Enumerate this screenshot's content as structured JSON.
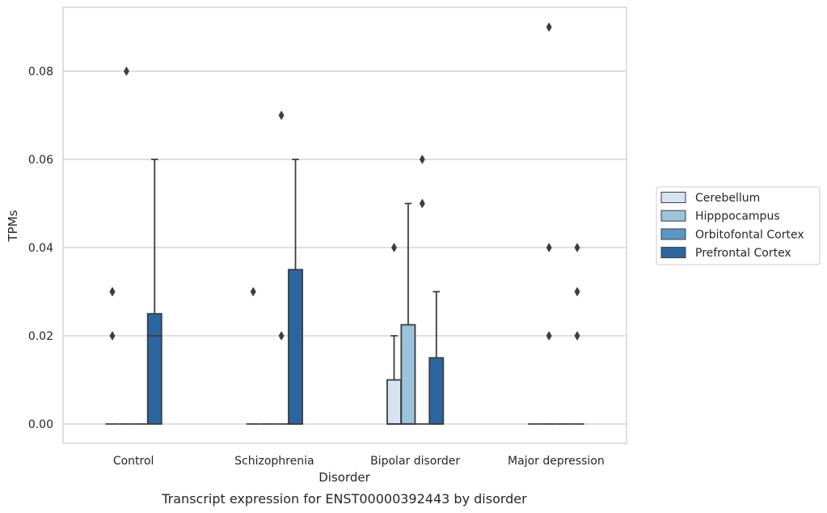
{
  "chart_data": {
    "type": "box",
    "caption": "Transcript expression for ENST00000392443 by disorder",
    "xlabel": "Disorder",
    "ylabel": "TPMs",
    "ylim": [
      -0.0045,
      0.0945
    ],
    "yticks": [
      "0.00",
      "0.02",
      "0.04",
      "0.06",
      "0.08"
    ],
    "ytick_values": [
      0,
      0.02,
      0.04,
      0.06,
      0.08
    ],
    "grid": "horizontal",
    "legend_position": "right",
    "categories": [
      "Control",
      "Schizophrenia",
      "Bipolar disorder",
      "Major depression"
    ],
    "series": [
      {
        "name": "Cerebellum",
        "color": "#d6e4f1",
        "boxes": [
          {
            "q1": 0,
            "median": 0,
            "q3": 0,
            "whisker_low": 0,
            "whisker_high": 0,
            "outliers": [
              0.02,
              0.03,
              0.03
            ]
          },
          {
            "q1": 0,
            "median": 0,
            "q3": 0,
            "whisker_low": 0,
            "whisker_high": 0,
            "outliers": [
              0.03
            ]
          },
          {
            "q1": 0,
            "median": 0,
            "q3": 0.01,
            "whisker_low": 0,
            "whisker_high": 0.02,
            "outliers": [
              0.04
            ]
          },
          {
            "q1": 0,
            "median": 0,
            "q3": 0,
            "whisker_low": 0,
            "whisker_high": 0,
            "outliers": []
          }
        ]
      },
      {
        "name": "Hipppocampus",
        "color": "#9bc4dc",
        "boxes": [
          {
            "q1": 0,
            "median": 0,
            "q3": 0,
            "whisker_low": 0,
            "whisker_high": 0,
            "outliers": [
              0.08
            ]
          },
          {
            "q1": 0,
            "median": 0,
            "q3": 0,
            "whisker_low": 0,
            "whisker_high": 0,
            "outliers": []
          },
          {
            "q1": 0,
            "median": 0,
            "q3": 0.0225,
            "whisker_low": 0,
            "whisker_high": 0.05,
            "outliers": []
          },
          {
            "q1": 0,
            "median": 0,
            "q3": 0,
            "whisker_low": 0,
            "whisker_high": 0,
            "outliers": [
              0.02,
              0.04,
              0.09
            ]
          }
        ]
      },
      {
        "name": "Orbitofontal Cortex",
        "color": "#5a97c5",
        "boxes": [
          {
            "q1": 0,
            "median": 0,
            "q3": 0,
            "whisker_low": 0,
            "whisker_high": 0,
            "outliers": []
          },
          {
            "q1": 0,
            "median": 0,
            "q3": 0,
            "whisker_low": 0,
            "whisker_high": 0,
            "outliers": [
              0.02,
              0.07
            ]
          },
          {
            "q1": 0,
            "median": 0,
            "q3": 0,
            "whisker_low": 0,
            "whisker_high": 0,
            "outliers": [
              0.05,
              0.06
            ]
          },
          {
            "q1": 0,
            "median": 0,
            "q3": 0,
            "whisker_low": 0,
            "whisker_high": 0,
            "outliers": []
          }
        ]
      },
      {
        "name": "Prefrontal Cortex",
        "color": "#2b66a0",
        "boxes": [
          {
            "q1": 0,
            "median": 0.02,
            "q3": 0.025,
            "whisker_low": 0,
            "whisker_high": 0.06,
            "outliers": []
          },
          {
            "q1": 0,
            "median": 0,
            "q3": 0.035,
            "whisker_low": 0,
            "whisker_high": 0.06,
            "outliers": []
          },
          {
            "q1": 0,
            "median": 0,
            "q3": 0.015,
            "whisker_low": 0,
            "whisker_high": 0.03,
            "outliers": []
          },
          {
            "q1": 0,
            "median": 0,
            "q3": 0,
            "whisker_low": 0,
            "whisker_high": 0,
            "outliers": [
              0.02,
              0.03,
              0.04
            ]
          }
        ]
      }
    ]
  }
}
